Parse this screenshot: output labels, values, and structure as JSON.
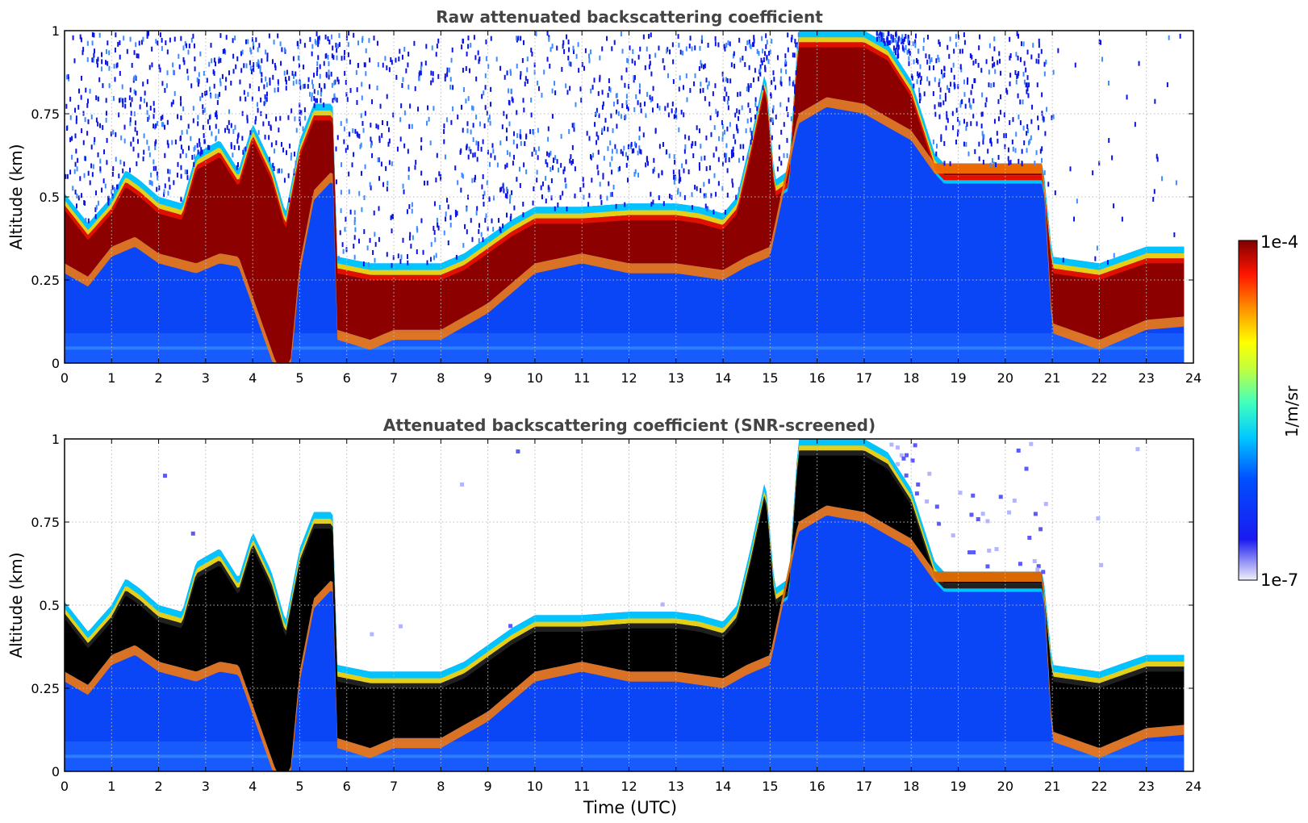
{
  "chart_data": [
    {
      "type": "heatmap",
      "title": "Raw attenuated backscattering coefficient",
      "xlabel": "",
      "ylabel": "Altitude (km)",
      "xlim": [
        0,
        24
      ],
      "ylim": [
        0,
        1
      ],
      "xticks": [
        "0",
        "1",
        "2",
        "3",
        "4",
        "5",
        "6",
        "7",
        "8",
        "9",
        "10",
        "11",
        "12",
        "13",
        "14",
        "15",
        "16",
        "17",
        "18",
        "19",
        "20",
        "21",
        "22",
        "23",
        "24"
      ],
      "yticks": [
        "0",
        "0.25",
        "0.5",
        "0.75",
        "1"
      ],
      "grid": true,
      "data_end_hour": 23.8,
      "layer_top_km": [
        [
          0,
          0.51
        ],
        [
          0.5,
          0.42
        ],
        [
          1,
          0.5
        ],
        [
          1.3,
          0.58
        ],
        [
          1.6,
          0.55
        ],
        [
          2,
          0.5
        ],
        [
          2.5,
          0.48
        ],
        [
          2.8,
          0.63
        ],
        [
          3.3,
          0.67
        ],
        [
          3.7,
          0.58
        ],
        [
          4,
          0.72
        ],
        [
          4.4,
          0.6
        ],
        [
          4.7,
          0.45
        ],
        [
          5,
          0.67
        ],
        [
          5.3,
          0.78
        ],
        [
          5.7,
          0.78
        ],
        [
          5.8,
          0.32
        ],
        [
          6.5,
          0.3
        ],
        [
          7,
          0.3
        ],
        [
          8,
          0.3
        ],
        [
          8.5,
          0.33
        ],
        [
          9,
          0.38
        ],
        [
          9.5,
          0.43
        ],
        [
          10,
          0.47
        ],
        [
          11,
          0.47
        ],
        [
          12,
          0.48
        ],
        [
          13,
          0.48
        ],
        [
          13.5,
          0.47
        ],
        [
          14,
          0.45
        ],
        [
          14.3,
          0.5
        ],
        [
          14.6,
          0.68
        ],
        [
          14.9,
          0.88
        ],
        [
          15.1,
          0.55
        ],
        [
          15.4,
          0.58
        ],
        [
          15.6,
          1.0
        ],
        [
          16.2,
          1.0
        ],
        [
          17,
          1.0
        ],
        [
          17.5,
          0.96
        ],
        [
          18,
          0.85
        ],
        [
          18.5,
          0.63
        ],
        [
          18.7,
          0.6
        ],
        [
          20.8,
          0.6
        ],
        [
          21,
          0.32
        ],
        [
          22,
          0.3
        ],
        [
          23,
          0.35
        ],
        [
          23.8,
          0.35
        ]
      ],
      "layer_bottom_km": [
        [
          0,
          0.3
        ],
        [
          0.5,
          0.26
        ],
        [
          1,
          0.35
        ],
        [
          1.5,
          0.38
        ],
        [
          2,
          0.33
        ],
        [
          2.8,
          0.3
        ],
        [
          3.3,
          0.33
        ],
        [
          3.7,
          0.32
        ],
        [
          4,
          0.2
        ],
        [
          4.3,
          0.08
        ],
        [
          4.5,
          0.0
        ],
        [
          4.8,
          0.0
        ],
        [
          5,
          0.3
        ],
        [
          5.3,
          0.52
        ],
        [
          5.7,
          0.58
        ],
        [
          5.8,
          0.1
        ],
        [
          6.5,
          0.07
        ],
        [
          7,
          0.1
        ],
        [
          8,
          0.1
        ],
        [
          9,
          0.18
        ],
        [
          10,
          0.3
        ],
        [
          11,
          0.33
        ],
        [
          12,
          0.3
        ],
        [
          13,
          0.3
        ],
        [
          14,
          0.28
        ],
        [
          14.5,
          0.32
        ],
        [
          15,
          0.35
        ],
        [
          15.6,
          0.75
        ],
        [
          16.2,
          0.8
        ],
        [
          17,
          0.78
        ],
        [
          18,
          0.7
        ],
        [
          18.5,
          0.6
        ],
        [
          18.7,
          0.6
        ],
        [
          20.8,
          0.6
        ],
        [
          21,
          0.12
        ],
        [
          22,
          0.07
        ],
        [
          23,
          0.13
        ],
        [
          23.8,
          0.14
        ]
      ]
    },
    {
      "type": "heatmap",
      "title": "Attenuated backscattering coefficient (SNR-screened)",
      "xlabel": "Time (UTC)",
      "ylabel": "Altitude (km)",
      "xlim": [
        0,
        24
      ],
      "ylim": [
        0,
        1
      ],
      "xticks": [
        "0",
        "1",
        "2",
        "3",
        "4",
        "5",
        "6",
        "7",
        "8",
        "9",
        "10",
        "11",
        "12",
        "13",
        "14",
        "15",
        "16",
        "17",
        "18",
        "19",
        "20",
        "21",
        "22",
        "23",
        "24"
      ],
      "yticks": [
        "0",
        "0.25",
        "0.5",
        "0.75",
        "1"
      ],
      "grid": true,
      "data_end_hour": 23.8,
      "saturated_color": "#000000"
    }
  ],
  "colorbar": {
    "label": "1/m/sr",
    "max_label": "1e-4",
    "min_label": "1e-7",
    "scale": "log",
    "colormap": "jet"
  },
  "colors": {
    "saturated": "#000000",
    "background": "#ffffff",
    "title": "#444444",
    "grid": "#bbbbbb"
  }
}
